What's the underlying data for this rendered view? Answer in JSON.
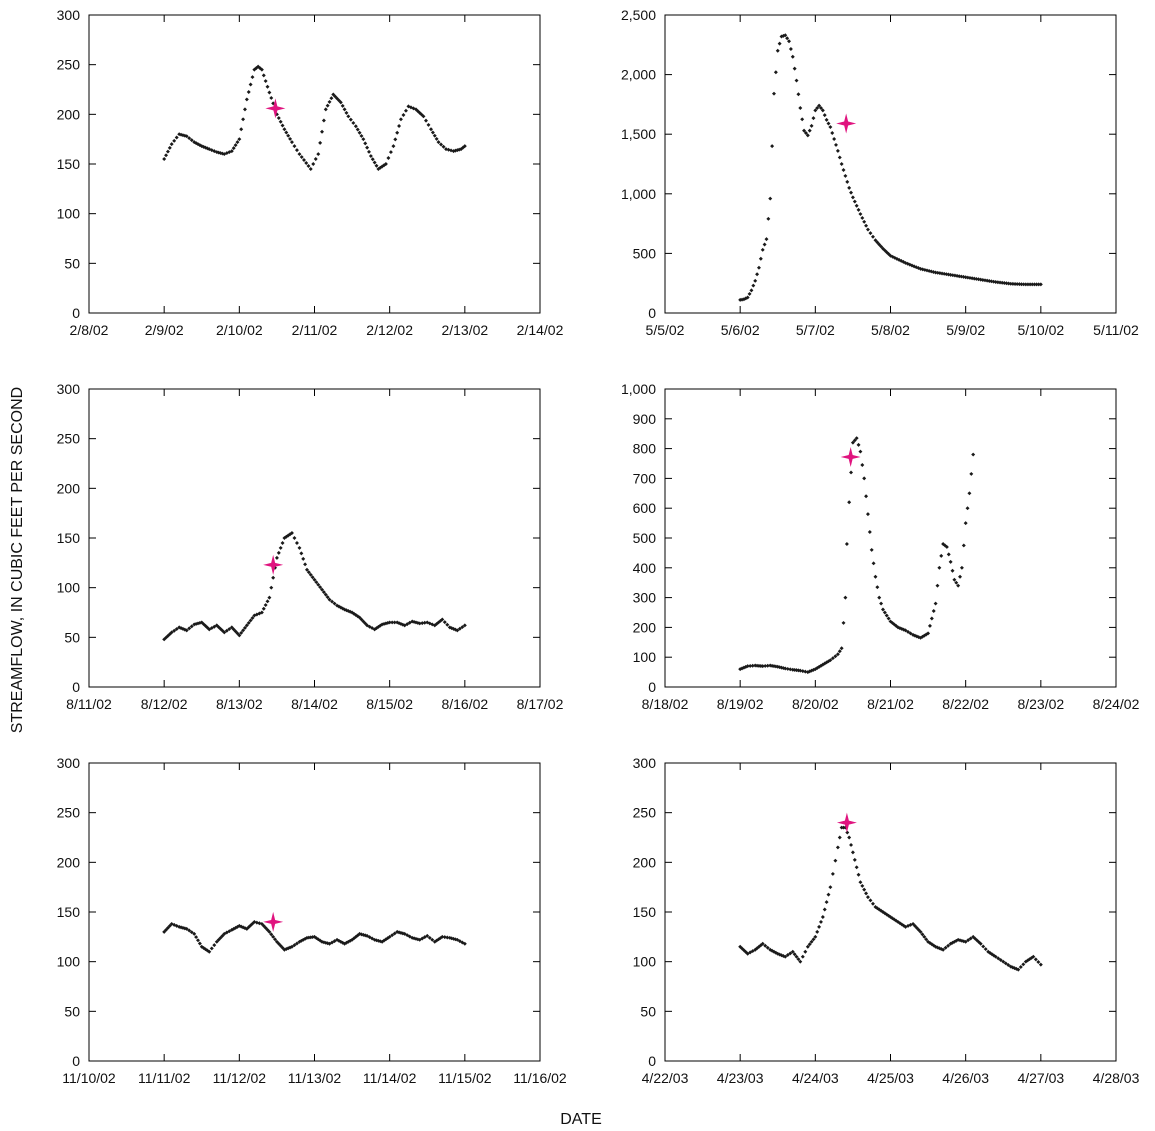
{
  "figure": {
    "ylabel": "STREAMFLOW, IN CUBIC FEET PER SECOND",
    "xlabel": "DATE",
    "colors": {
      "data_points": "#1a1a1a",
      "sample_marker": "#e0147f",
      "axes": "#000000"
    },
    "marker_icon": "four-point-star-icon"
  },
  "chart_data": [
    {
      "type": "scatter",
      "x_ticks": [
        "2/8/02",
        "2/9/02",
        "2/10/02",
        "2/11/02",
        "2/12/02",
        "2/13/02",
        "2/14/02"
      ],
      "ylim": [
        0,
        300
      ],
      "y_ticks": [
        "0",
        "50",
        "100",
        "150",
        "200",
        "250",
        "300"
      ],
      "grid": false,
      "x": [
        0,
        0.1,
        0.2,
        0.3,
        0.4,
        0.5,
        0.6,
        0.7,
        0.8,
        0.9,
        1.0,
        1.1,
        1.2,
        1.25,
        1.3,
        1.4,
        1.5,
        1.6,
        1.7,
        1.8,
        1.9,
        2.0,
        2.1,
        2.2,
        2.3,
        2.4,
        2.5,
        2.6,
        2.7,
        2.8,
        2.9,
        3.0,
        3.1,
        3.2,
        3.3,
        3.4,
        3.5,
        3.6,
        3.7,
        3.8,
        3.9,
        4.0,
        4.1,
        4.2,
        4.3,
        4.4,
        4.5,
        4.6,
        4.7,
        4.8,
        4.9,
        5.0
      ],
      "series": [
        {
          "values": [
            155,
            170,
            180,
            178,
            172,
            168,
            165,
            162,
            160,
            163,
            175,
            215,
            245,
            248,
            245,
            222,
            200,
            185,
            172,
            160,
            145,
            160,
            205,
            220,
            212,
            198,
            188,
            175,
            158,
            145,
            150,
            168,
            195,
            208,
            205,
            198,
            185,
            172,
            165,
            163,
            165,
            168
          ]
        }
      ],
      "series_x": [
        1.0,
        1.1,
        1.2,
        1.3,
        1.4,
        1.5,
        1.6,
        1.7,
        1.8,
        1.9,
        2.0,
        2.1,
        2.2,
        2.25,
        2.3,
        2.4,
        2.5,
        2.6,
        2.7,
        2.8,
        2.95,
        3.05,
        3.15,
        3.25,
        3.35,
        3.45,
        3.55,
        3.65,
        3.75,
        3.85,
        3.95,
        4.05,
        4.15,
        4.25,
        4.35,
        4.45,
        4.55,
        4.65,
        4.75,
        4.85,
        4.95,
        5.0
      ],
      "sample": {
        "x": 2.48,
        "y": 206
      }
    },
    {
      "type": "scatter",
      "x_ticks": [
        "5/5/02",
        "5/6/02",
        "5/7/02",
        "5/8/02",
        "5/9/02",
        "5/10/02",
        "5/11/02"
      ],
      "ylim": [
        0,
        2500
      ],
      "y_ticks": [
        "0",
        "500",
        "1,000",
        "1,500",
        "2,000",
        "2,500"
      ],
      "grid": false,
      "series_x": [
        1.0,
        1.05,
        1.1,
        1.15,
        1.2,
        1.25,
        1.3,
        1.35,
        1.4,
        1.45,
        1.5,
        1.55,
        1.6,
        1.65,
        1.7,
        1.75,
        1.8,
        1.85,
        1.9,
        1.95,
        2.0,
        2.05,
        2.1,
        2.15,
        2.2,
        2.25,
        2.3,
        2.35,
        2.4,
        2.45,
        2.5,
        2.6,
        2.7,
        2.8,
        2.9,
        3.0,
        3.2,
        3.4,
        3.6,
        3.8,
        4.0,
        4.2,
        4.4,
        4.6,
        4.8,
        5.0
      ],
      "series": [
        {
          "values": [
            110,
            115,
            130,
            190,
            270,
            380,
            530,
            620,
            960,
            1840,
            2200,
            2320,
            2330,
            2280,
            2150,
            1950,
            1720,
            1530,
            1490,
            1570,
            1700,
            1740,
            1700,
            1620,
            1560,
            1460,
            1360,
            1250,
            1150,
            1050,
            970,
            830,
            700,
            610,
            540,
            480,
            420,
            370,
            340,
            320,
            300,
            280,
            260,
            245,
            240,
            240
          ]
        }
      ],
      "sample": {
        "x": 2.41,
        "y": 1590
      }
    },
    {
      "type": "scatter",
      "x_ticks": [
        "8/11/02",
        "8/12/02",
        "8/13/02",
        "8/14/02",
        "8/15/02",
        "8/16/02",
        "8/17/02"
      ],
      "ylim": [
        0,
        300
      ],
      "y_ticks": [
        "0",
        "50",
        "100",
        "150",
        "200",
        "250",
        "300"
      ],
      "grid": false,
      "series_x": [
        1.0,
        1.1,
        1.2,
        1.3,
        1.4,
        1.5,
        1.6,
        1.7,
        1.8,
        1.9,
        2.0,
        2.1,
        2.2,
        2.3,
        2.4,
        2.5,
        2.6,
        2.7,
        2.8,
        2.9,
        3.0,
        3.1,
        3.2,
        3.3,
        3.4,
        3.5,
        3.6,
        3.7,
        3.8,
        3.9,
        4.0,
        4.1,
        4.2,
        4.3,
        4.4,
        4.5,
        4.6,
        4.7,
        4.8,
        4.9,
        5.0
      ],
      "series": [
        {
          "values": [
            48,
            55,
            60,
            57,
            63,
            65,
            58,
            62,
            55,
            60,
            52,
            62,
            72,
            75,
            90,
            130,
            150,
            155,
            140,
            118,
            108,
            98,
            88,
            82,
            78,
            75,
            70,
            62,
            58,
            63,
            65,
            65,
            62,
            66,
            64,
            65,
            62,
            68,
            60,
            57,
            62
          ]
        }
      ],
      "sample": {
        "x": 2.45,
        "y": 123
      }
    },
    {
      "type": "scatter",
      "x_ticks": [
        "8/18/02",
        "8/19/02",
        "8/20/02",
        "8/21/02",
        "8/22/02",
        "8/23/02",
        "8/24/02"
      ],
      "ylim": [
        0,
        1000
      ],
      "y_ticks": [
        "0",
        "100",
        "200",
        "300",
        "400",
        "500",
        "600",
        "700",
        "800",
        "900",
        "1,000"
      ],
      "grid": false,
      "series_x": [
        1.0,
        1.1,
        1.2,
        1.3,
        1.4,
        1.5,
        1.6,
        1.7,
        1.8,
        1.9,
        2.0,
        2.1,
        2.2,
        2.3,
        2.35,
        2.4,
        2.42,
        2.45,
        2.5,
        2.55,
        2.6,
        2.65,
        2.7,
        2.75,
        2.8,
        2.85,
        2.9,
        2.95,
        3.0,
        3.1,
        3.2,
        3.3,
        3.4,
        3.5,
        3.6,
        3.65,
        3.7,
        3.75,
        3.8,
        3.85,
        3.9,
        3.95,
        4.0,
        4.05,
        4.1
      ],
      "series": [
        {
          "values": [
            60,
            70,
            72,
            70,
            72,
            68,
            62,
            58,
            55,
            50,
            60,
            75,
            90,
            110,
            130,
            300,
            480,
            620,
            820,
            835,
            790,
            700,
            580,
            460,
            370,
            300,
            260,
            240,
            220,
            200,
            190,
            175,
            165,
            180,
            280,
            400,
            480,
            470,
            420,
            360,
            340,
            400,
            550,
            650,
            780
          ]
        }
      ],
      "sample": {
        "x": 2.47,
        "y": 772
      }
    },
    {
      "type": "scatter",
      "x_ticks": [
        "11/10/02",
        "11/11/02",
        "11/12/02",
        "11/13/02",
        "11/14/02",
        "11/15/02",
        "11/16/02"
      ],
      "ylim": [
        0,
        300
      ],
      "y_ticks": [
        "0",
        "50",
        "100",
        "150",
        "200",
        "250",
        "300"
      ],
      "grid": false,
      "series_x": [
        1.0,
        1.1,
        1.2,
        1.3,
        1.4,
        1.5,
        1.6,
        1.7,
        1.8,
        1.9,
        2.0,
        2.1,
        2.2,
        2.3,
        2.4,
        2.5,
        2.6,
        2.7,
        2.8,
        2.9,
        3.0,
        3.1,
        3.2,
        3.3,
        3.4,
        3.5,
        3.6,
        3.7,
        3.8,
        3.9,
        4.0,
        4.1,
        4.2,
        4.3,
        4.4,
        4.5,
        4.6,
        4.7,
        4.8,
        4.9,
        5.0
      ],
      "series": [
        {
          "values": [
            130,
            138,
            135,
            133,
            128,
            115,
            110,
            120,
            128,
            132,
            136,
            133,
            140,
            138,
            130,
            120,
            112,
            115,
            120,
            124,
            125,
            120,
            118,
            122,
            118,
            122,
            128,
            126,
            122,
            120,
            125,
            130,
            128,
            124,
            122,
            126,
            120,
            125,
            124,
            122,
            118
          ]
        }
      ],
      "sample": {
        "x": 2.45,
        "y": 140
      }
    },
    {
      "type": "scatter",
      "x_ticks": [
        "4/22/03",
        "4/23/03",
        "4/24/03",
        "4/25/03",
        "4/26/03",
        "4/27/03",
        "4/28/03"
      ],
      "ylim": [
        0,
        300
      ],
      "y_ticks": [
        "0",
        "50",
        "100",
        "150",
        "200",
        "250",
        "300"
      ],
      "grid": false,
      "series_x": [
        1.0,
        1.1,
        1.2,
        1.3,
        1.4,
        1.5,
        1.6,
        1.7,
        1.8,
        1.9,
        2.0,
        2.1,
        2.2,
        2.3,
        2.35,
        2.4,
        2.45,
        2.5,
        2.55,
        2.6,
        2.7,
        2.8,
        2.9,
        3.0,
        3.1,
        3.2,
        3.3,
        3.4,
        3.5,
        3.6,
        3.7,
        3.8,
        3.9,
        4.0,
        4.1,
        4.2,
        4.3,
        4.4,
        4.5,
        4.6,
        4.7,
        4.8,
        4.9,
        5.0
      ],
      "series": [
        {
          "values": [
            115,
            108,
            112,
            118,
            112,
            108,
            105,
            110,
            100,
            115,
            125,
            145,
            175,
            215,
            235,
            235,
            225,
            210,
            195,
            180,
            165,
            155,
            150,
            145,
            140,
            135,
            138,
            130,
            120,
            115,
            112,
            118,
            122,
            120,
            125,
            118,
            110,
            105,
            100,
            95,
            92,
            100,
            105,
            97
          ]
        }
      ],
      "sample": {
        "x": 2.42,
        "y": 240
      }
    }
  ]
}
